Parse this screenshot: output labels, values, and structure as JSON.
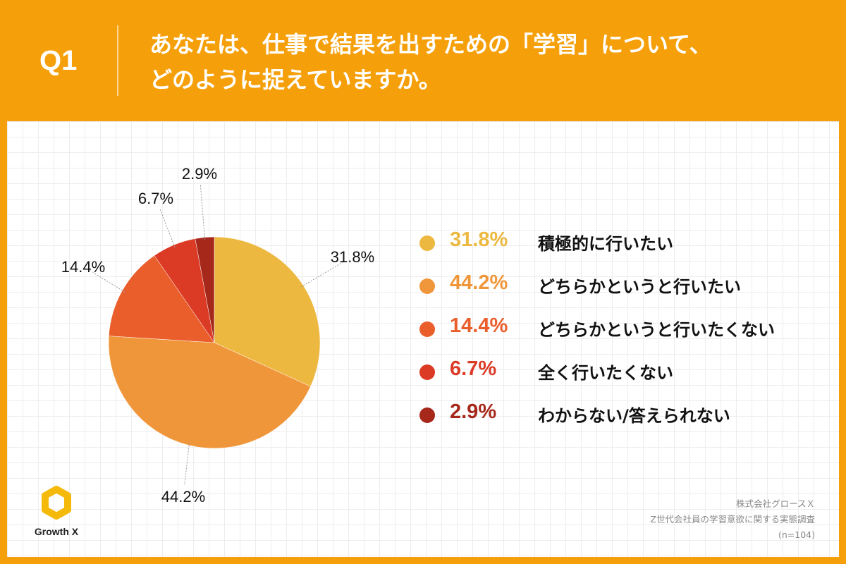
{
  "header": {
    "question_label": "Q1",
    "title_line1": "あなたは、仕事で結果を出すための「学習」について、",
    "title_line2": "どのように捉えていますか。"
  },
  "chart_data": {
    "type": "pie",
    "categories": [
      "積極的に行いたい",
      "どちらかというと行いたい",
      "どちらかというと行いたくない",
      "全く行いたくない",
      "わからない/答えられない"
    ],
    "values": [
      31.8,
      44.2,
      14.4,
      6.7,
      2.9
    ],
    "labels": [
      "31.8%",
      "44.2%",
      "14.4%",
      "6.7%",
      "2.9%"
    ],
    "colors": [
      "#EDB840",
      "#F0963A",
      "#EA5E2C",
      "#DB3A25",
      "#A5281A"
    ],
    "legend_position": "right",
    "start": "12 o'clock, clockwise"
  },
  "legend": [
    {
      "pct": "31.8%",
      "text": "積極的に行いたい",
      "color": "#EDB840"
    },
    {
      "pct": "44.2%",
      "text": "どちらかというと行いたい",
      "color": "#F0963A"
    },
    {
      "pct": "14.4%",
      "text": "どちらかというと行いたくない",
      "color": "#EA5E2C"
    },
    {
      "pct": "6.7%",
      "text": "全く行いたくない",
      "color": "#DB3A25"
    },
    {
      "pct": "2.9%",
      "text": "わからない/答えられない",
      "color": "#A5281A"
    }
  ],
  "logo": {
    "name": "Growth X",
    "icon": "hexagon-ring-logo-icon"
  },
  "source": {
    "company": "株式会社グロースＸ",
    "survey": "Z世代会社員の学習意欲に関する実態調査",
    "sample": "(n=104)"
  },
  "colors": {
    "background": "#F5A00B",
    "card": "#FFFFFF",
    "grid": "#EDEDED"
  }
}
